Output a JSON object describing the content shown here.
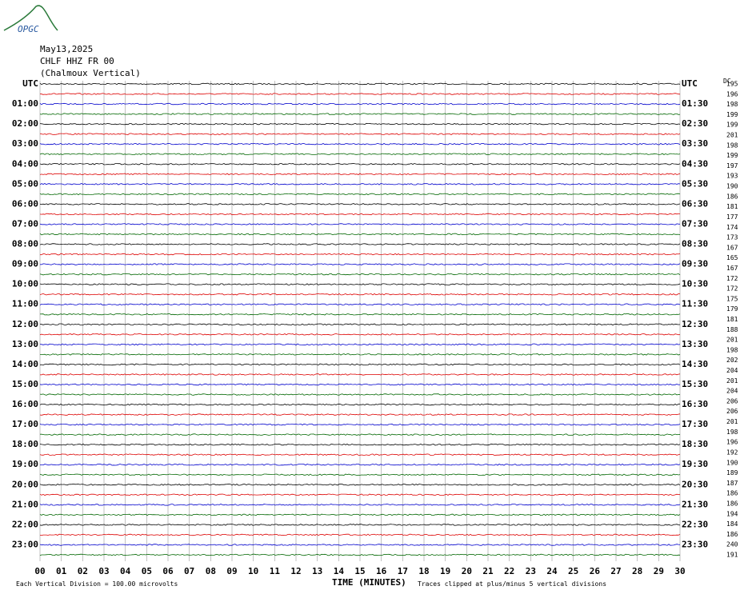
{
  "logo": "OPGC",
  "header": {
    "date": "May13,2025",
    "station": "CHLF HHZ FR 00",
    "name": "(Chalmoux Vertical)",
    "corner": "DC"
  },
  "left_labels": [
    "UTC",
    "01:00",
    "02:00",
    "03:00",
    "04:00",
    "05:00",
    "06:00",
    "07:00",
    "08:00",
    "09:00",
    "10:00",
    "11:00",
    "12:00",
    "13:00",
    "14:00",
    "15:00",
    "16:00",
    "17:00",
    "18:00",
    "19:00",
    "20:00",
    "21:00",
    "22:00",
    "23:00"
  ],
  "right_labels": [
    "UTC",
    "01:30",
    "02:30",
    "03:30",
    "04:30",
    "05:30",
    "06:30",
    "07:30",
    "08:30",
    "09:30",
    "10:30",
    "11:30",
    "12:30",
    "13:30",
    "14:30",
    "15:30",
    "16:30",
    "17:30",
    "18:30",
    "19:30",
    "20:30",
    "21:30",
    "22:30",
    "23:30"
  ],
  "right_values": [
    195,
    196,
    198,
    199,
    199,
    201,
    198,
    199,
    197,
    193,
    190,
    186,
    181,
    177,
    174,
    173,
    167,
    165,
    167,
    172,
    172,
    175,
    179,
    181,
    188,
    201,
    198,
    202,
    204,
    201,
    204,
    206,
    206,
    201,
    198,
    196,
    192,
    190,
    189,
    187,
    186,
    186,
    194,
    184,
    186,
    240,
    191
  ],
  "x_labels": [
    "00",
    "01",
    "02",
    "03",
    "04",
    "05",
    "06",
    "07",
    "08",
    "09",
    "10",
    "11",
    "12",
    "13",
    "14",
    "15",
    "16",
    "17",
    "18",
    "19",
    "20",
    "21",
    "22",
    "23",
    "24",
    "25",
    "26",
    "27",
    "28",
    "29",
    "30"
  ],
  "footer": {
    "left": "Each Vertical Division =  100.00 microvolts",
    "axis": "TIME (MINUTES)",
    "right": "Traces clipped at plus/minus 5 vertical divisions"
  }
}
